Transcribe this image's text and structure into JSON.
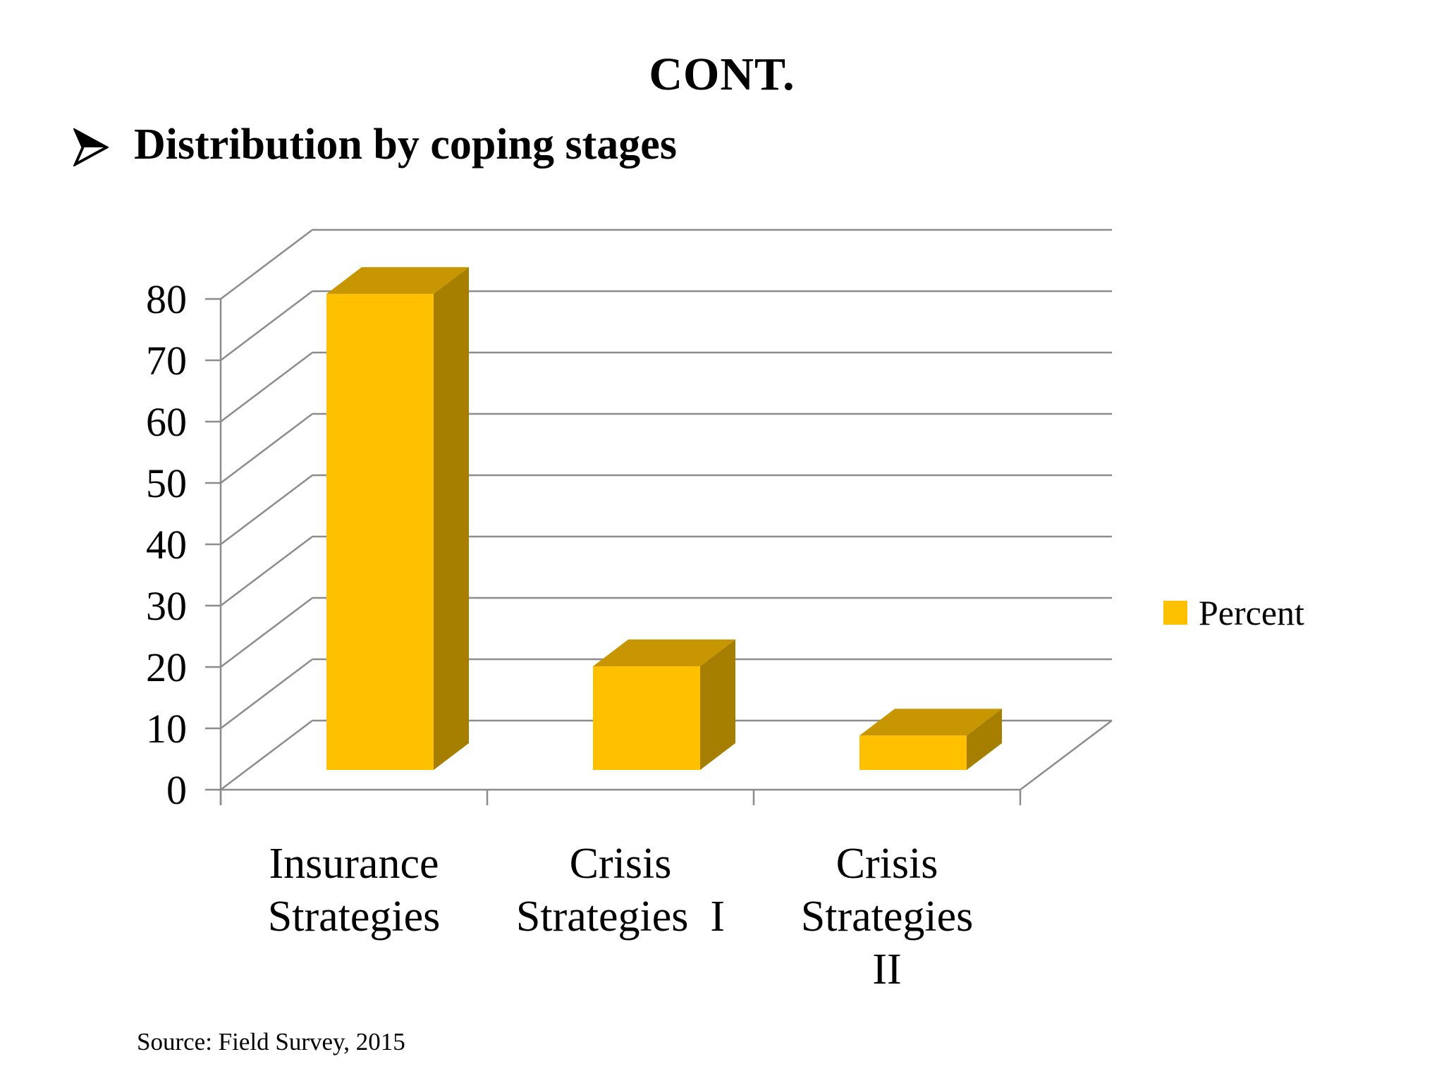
{
  "slide": {
    "title": "CONT.",
    "bullet": "Distribution by coping stages",
    "source_note": "Source: Field Survey, 2015"
  },
  "chart_data": {
    "type": "bar",
    "projection": "3d",
    "title": "",
    "categories": [
      "Insurance\nStrategies",
      "Crisis\nStrategies  I",
      "Crisis\nStrategies\nII"
    ],
    "values": [
      77.6,
      16.9,
      5.6
    ],
    "series_name": "Percent",
    "legend": [
      "Percent"
    ],
    "legend_position": "right",
    "xlabel": "",
    "ylabel": "",
    "ylim": [
      0,
      80
    ],
    "ytick_step": 10,
    "yticks": [
      0,
      10,
      20,
      30,
      40,
      50,
      60,
      70,
      80
    ],
    "grid": true,
    "colors": {
      "bar_front": "#FFC000",
      "bar_top": "#C79600",
      "bar_side": "#A67E00",
      "gridline": "#8C8C8C",
      "text": "#000000"
    }
  }
}
